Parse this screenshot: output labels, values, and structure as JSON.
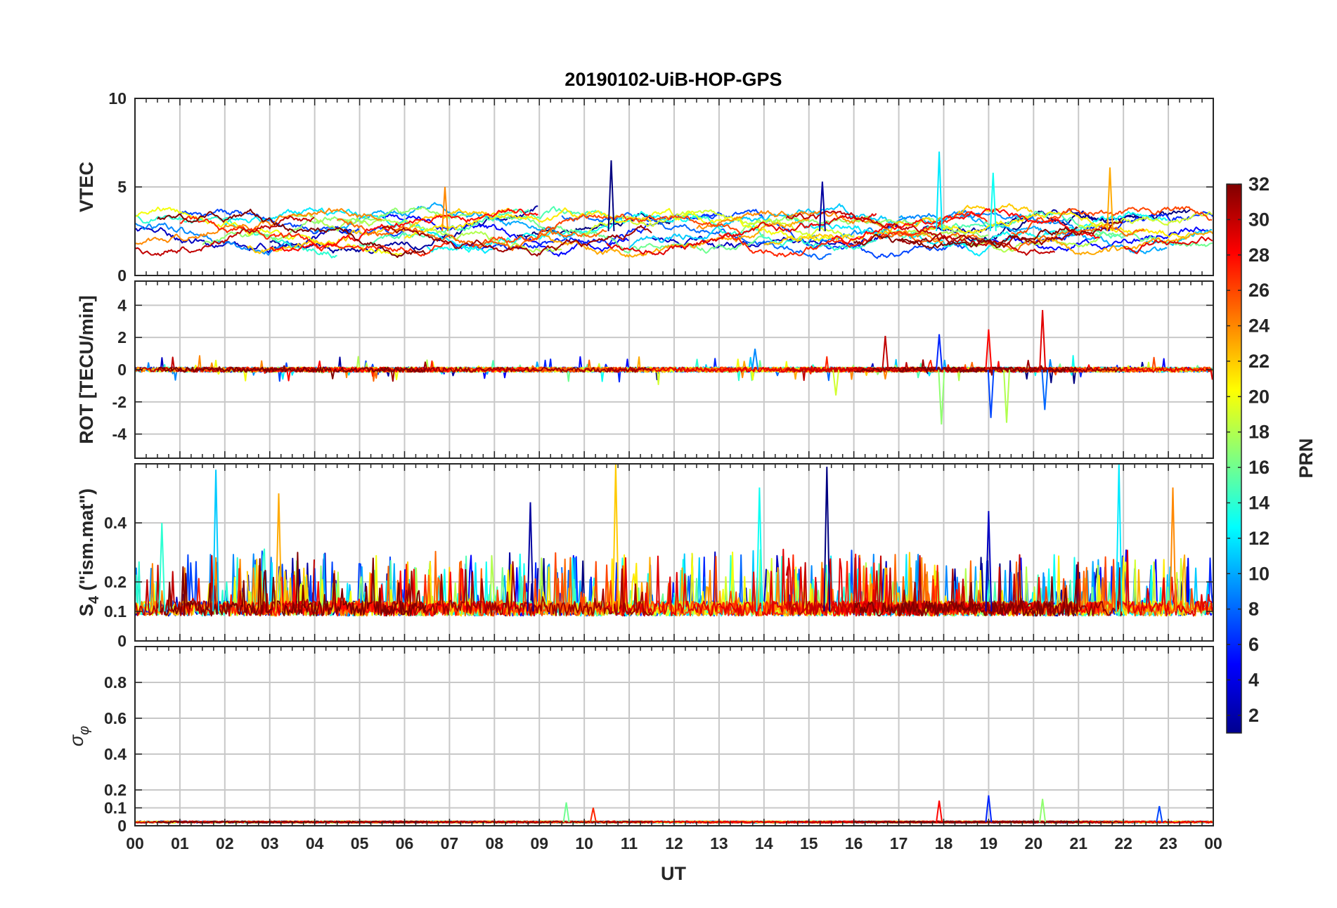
{
  "chart_data": {
    "type": "line",
    "title": "20190102-UiB-HOP-GPS",
    "xlabel": "UT",
    "x_tick_labels": [
      "00",
      "01",
      "02",
      "03",
      "04",
      "05",
      "06",
      "07",
      "08",
      "09",
      "10",
      "11",
      "12",
      "13",
      "14",
      "15",
      "16",
      "17",
      "18",
      "19",
      "20",
      "21",
      "22",
      "23",
      "00"
    ],
    "x_range_hours": [
      0,
      24
    ],
    "grid": true,
    "panels": [
      {
        "id": "vtec",
        "ylabel": "VTEC",
        "ylim": [
          0,
          10
        ],
        "yticks": [
          0,
          5,
          10
        ],
        "ytick_labels": [
          "0",
          "5",
          "10"
        ],
        "baseline": 2.5,
        "spread": 0.9,
        "spikes": [
          {
            "t": 10.6,
            "v": 6.5
          },
          {
            "t": 17.9,
            "v": 7.0
          },
          {
            "t": 21.7,
            "v": 6.1
          },
          {
            "t": 15.3,
            "v": 5.3
          },
          {
            "t": 19.1,
            "v": 5.8
          },
          {
            "t": 6.9,
            "v": 5.0
          }
        ]
      },
      {
        "id": "rot",
        "ylabel": "ROT [TECU/min]",
        "ylim": [
          -5.5,
          5.5
        ],
        "yticks": [
          -4,
          -2,
          0,
          2,
          4
        ],
        "ytick_labels": [
          "-4",
          "-2",
          "0",
          "2",
          "4"
        ],
        "baseline": 0,
        "spread": 0.15,
        "spikes": [
          {
            "t": 17.9,
            "v": 2.2
          },
          {
            "t": 17.95,
            "v": -3.4
          },
          {
            "t": 19.0,
            "v": 2.5
          },
          {
            "t": 19.05,
            "v": -3.0
          },
          {
            "t": 19.4,
            "v": -3.3
          },
          {
            "t": 20.2,
            "v": 3.7
          },
          {
            "t": 20.25,
            "v": -2.5
          },
          {
            "t": 15.6,
            "v": -1.6
          },
          {
            "t": 16.7,
            "v": 2.1
          },
          {
            "t": 13.8,
            "v": 1.3
          }
        ]
      },
      {
        "id": "s4",
        "ylabel": "S4 (\"ism.mat\")",
        "ylabel_main": "S",
        "ylabel_sub": "4",
        "ylabel_rest": " (\"ism.mat\")",
        "ylim": [
          0,
          0.6
        ],
        "yticks": [
          0,
          0.1,
          0.2,
          0.4
        ],
        "ytick_labels": [
          "0",
          "0.1",
          "0.2",
          "0.4"
        ],
        "baseline": 0.1,
        "spread": 0.05,
        "spikes": [
          {
            "t": 1.8,
            "v": 0.58
          },
          {
            "t": 10.7,
            "v": 0.6
          },
          {
            "t": 15.4,
            "v": 0.59
          },
          {
            "t": 21.9,
            "v": 0.6
          },
          {
            "t": 3.2,
            "v": 0.5
          },
          {
            "t": 8.8,
            "v": 0.47
          },
          {
            "t": 13.9,
            "v": 0.52
          },
          {
            "t": 23.1,
            "v": 0.52
          },
          {
            "t": 19.0,
            "v": 0.44
          },
          {
            "t": 0.6,
            "v": 0.4
          }
        ]
      },
      {
        "id": "sigma_phi",
        "ylabel": "σ φ",
        "ylabel_main": "σ",
        "ylabel_sub": "φ",
        "ylim": [
          0,
          1
        ],
        "yticks": [
          0,
          0.1,
          0.2,
          0.4,
          0.6,
          0.8
        ],
        "ytick_labels": [
          "0",
          "0.1",
          "0.2",
          "0.4",
          "0.6",
          "0.8"
        ],
        "baseline": 0.02,
        "spread": 0.01,
        "spikes": [
          {
            "t": 9.6,
            "v": 0.13
          },
          {
            "t": 10.2,
            "v": 0.1
          },
          {
            "t": 19.0,
            "v": 0.17
          },
          {
            "t": 20.2,
            "v": 0.15
          },
          {
            "t": 17.9,
            "v": 0.14
          },
          {
            "t": 22.8,
            "v": 0.11
          }
        ]
      }
    ],
    "series": [
      {
        "name": "PRN 1",
        "prn": 1,
        "visible_hours": [
          [
            8.5,
            12.0
          ],
          [
            18.5,
            23.5
          ]
        ]
      },
      {
        "name": "PRN 2",
        "prn": 2,
        "visible_hours": [
          [
            3.0,
            9.0
          ],
          [
            17.5,
            22.5
          ]
        ]
      },
      {
        "name": "PRN 3",
        "prn": 3,
        "visible_hours": [
          [
            0.0,
            5.0
          ],
          [
            11.5,
            17.0
          ]
        ]
      },
      {
        "name": "PRN 5",
        "prn": 5,
        "visible_hours": [
          [
            5.5,
            11.0
          ],
          [
            19.0,
            24.0
          ]
        ]
      },
      {
        "name": "PRN 6",
        "prn": 6,
        "visible_hours": [
          [
            7.0,
            13.0
          ],
          [
            20.0,
            24.0
          ]
        ]
      },
      {
        "name": "PRN 7",
        "prn": 7,
        "visible_hours": [
          [
            1.0,
            6.0
          ],
          [
            12.5,
            18.5
          ]
        ]
      },
      {
        "name": "PRN 8",
        "prn": 8,
        "visible_hours": [
          [
            9.5,
            15.5
          ]
        ]
      },
      {
        "name": "PRN 9",
        "prn": 9,
        "visible_hours": [
          [
            0.0,
            3.5
          ],
          [
            15.0,
            21.0
          ]
        ]
      },
      {
        "name": "PRN 10",
        "prn": 10,
        "visible_hours": [
          [
            4.0,
            10.0
          ],
          [
            17.0,
            23.0
          ]
        ]
      },
      {
        "name": "PRN 11",
        "prn": 11,
        "visible_hours": [
          [
            11.0,
            17.0
          ],
          [
            22.5,
            24.0
          ]
        ]
      },
      {
        "name": "PRN 12",
        "prn": 12,
        "visible_hours": [
          [
            2.0,
            8.0
          ],
          [
            14.5,
            19.5
          ]
        ]
      },
      {
        "name": "PRN 13",
        "prn": 13,
        "visible_hours": [
          [
            6.5,
            12.5
          ],
          [
            18.0,
            23.0
          ]
        ]
      },
      {
        "name": "PRN 14",
        "prn": 14,
        "visible_hours": [
          [
            0.0,
            4.5
          ],
          [
            12.0,
            16.5
          ]
        ]
      },
      {
        "name": "PRN 15",
        "prn": 15,
        "visible_hours": [
          [
            5.0,
            10.5
          ],
          [
            16.5,
            22.0
          ]
        ]
      },
      {
        "name": "PRN 16",
        "prn": 16,
        "visible_hours": [
          [
            8.0,
            14.0
          ],
          [
            20.5,
            24.0
          ]
        ]
      },
      {
        "name": "PRN 17",
        "prn": 17,
        "visible_hours": [
          [
            1.5,
            7.5
          ],
          [
            13.5,
            19.0
          ]
        ]
      },
      {
        "name": "PRN 18",
        "prn": 18,
        "visible_hours": [
          [
            3.5,
            9.5
          ],
          [
            16.0,
            21.5
          ]
        ]
      },
      {
        "name": "PRN 19",
        "prn": 19,
        "visible_hours": [
          [
            10.0,
            16.0
          ],
          [
            21.0,
            24.0
          ]
        ]
      },
      {
        "name": "PRN 20",
        "prn": 20,
        "visible_hours": [
          [
            0.0,
            6.0
          ],
          [
            11.5,
            15.5
          ]
        ]
      },
      {
        "name": "PRN 21",
        "prn": 21,
        "visible_hours": [
          [
            6.0,
            11.5
          ],
          [
            17.5,
            23.5
          ]
        ]
      },
      {
        "name": "PRN 22",
        "prn": 22,
        "visible_hours": [
          [
            2.5,
            8.5
          ],
          [
            14.0,
            20.0
          ]
        ]
      },
      {
        "name": "PRN 23",
        "prn": 23,
        "visible_hours": [
          [
            9.0,
            15.0
          ],
          [
            20.0,
            24.0
          ]
        ]
      },
      {
        "name": "PRN 24",
        "prn": 24,
        "visible_hours": [
          [
            0.0,
            5.5
          ],
          [
            12.5,
            18.0
          ]
        ]
      },
      {
        "name": "PRN 25",
        "prn": 25,
        "visible_hours": [
          [
            4.5,
            10.5
          ],
          [
            16.5,
            22.5
          ]
        ]
      },
      {
        "name": "PRN 26",
        "prn": 26,
        "visible_hours": [
          [
            7.5,
            13.5
          ],
          [
            19.5,
            24.0
          ]
        ]
      },
      {
        "name": "PRN 27",
        "prn": 27,
        "visible_hours": [
          [
            1.0,
            7.0
          ],
          [
            13.0,
            19.0
          ]
        ]
      },
      {
        "name": "PRN 28",
        "prn": 28,
        "visible_hours": [
          [
            3.0,
            9.0
          ],
          [
            15.5,
            21.5
          ]
        ]
      },
      {
        "name": "PRN 29",
        "prn": 29,
        "visible_hours": [
          [
            10.5,
            16.5
          ],
          [
            22.0,
            24.0
          ]
        ]
      },
      {
        "name": "PRN 30",
        "prn": 30,
        "visible_hours": [
          [
            0.0,
            4.0
          ],
          [
            14.5,
            20.5
          ]
        ]
      },
      {
        "name": "PRN 31",
        "prn": 31,
        "visible_hours": [
          [
            5.5,
            11.5
          ],
          [
            17.0,
            22.0
          ]
        ]
      },
      {
        "name": "PRN 32",
        "prn": 32,
        "visible_hours": [
          [
            0.5,
            6.5
          ],
          [
            16.0,
            21.0
          ]
        ]
      }
    ],
    "colorbar": {
      "label": "PRN",
      "range": [
        1,
        32
      ],
      "ticks": [
        2,
        4,
        6,
        8,
        10,
        12,
        14,
        16,
        18,
        20,
        22,
        24,
        26,
        28,
        30,
        32
      ],
      "tick_labels": [
        "2",
        "4",
        "6",
        "8",
        "10",
        "12",
        "14",
        "16",
        "18",
        "20",
        "22",
        "24",
        "26",
        "28",
        "30",
        "32"
      ],
      "colormap": "jet"
    }
  }
}
